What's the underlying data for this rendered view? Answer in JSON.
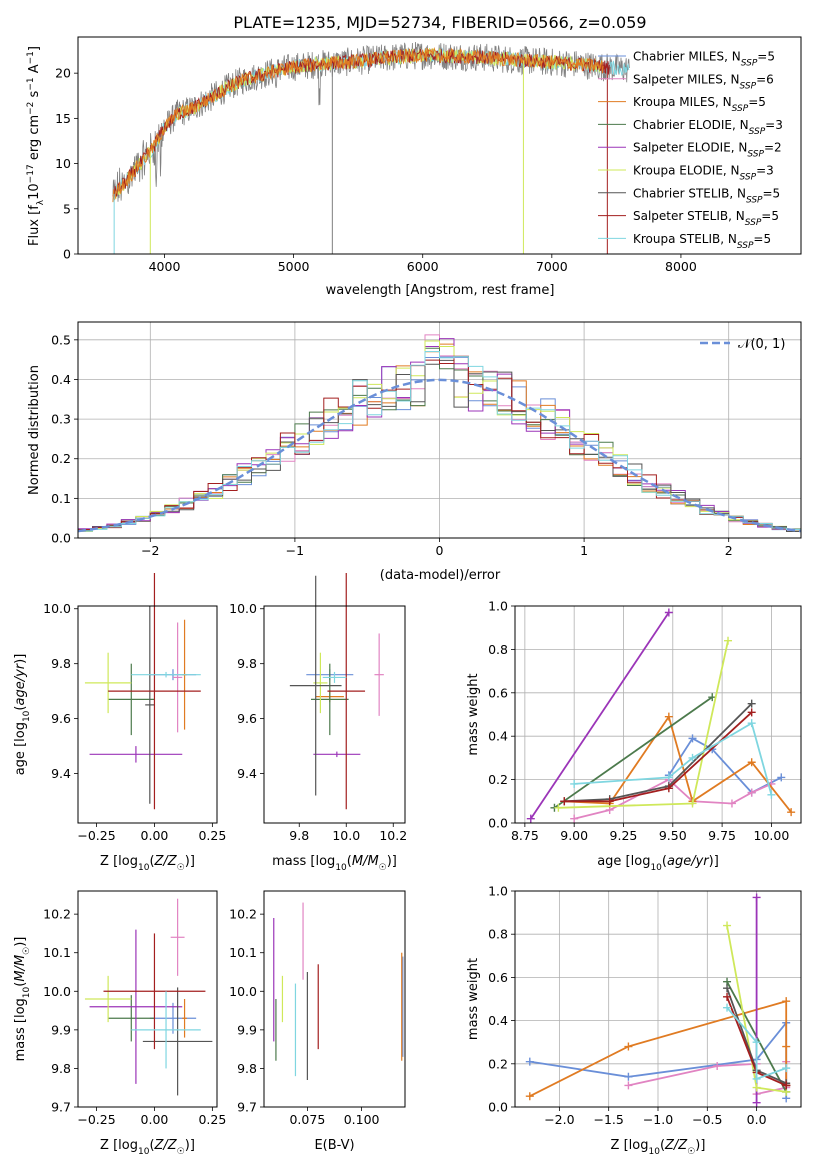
{
  "figure": {
    "title": "PLATE=1235, MJD=52734, FIBERID=0566, z=0.059"
  },
  "colors": {
    "chabrier_miles": "#6a8fd8",
    "salpeter_miles": "#e184c2",
    "kroupa_miles": "#e07b22",
    "chabrier_elodie": "#4c7a4c",
    "salpeter_elodie": "#9b35b8",
    "kroupa_elodie": "#cfe85a",
    "chabrier_stelib": "#555555",
    "salpeter_stelib": "#a31f1f",
    "kroupa_stelib": "#7fd6e0",
    "normal": "#6a8fd8",
    "data": "#808080"
  },
  "chart_data": [
    {
      "id": "spectrum",
      "type": "line",
      "xlabel": "wavelength [Angstrom, rest frame]",
      "ylabel": "Flux [f_λ10^-17 erg cm^-2 s^-1 A^-1]",
      "xlim": [
        3330,
        8930
      ],
      "ylim": [
        0,
        24
      ],
      "xticks": [
        4000,
        5000,
        6000,
        7000,
        8000
      ],
      "yticks": [
        0,
        5,
        10,
        15,
        20
      ],
      "grid": false,
      "legend_position": "right",
      "continuum": {
        "x": [
          3600,
          3700,
          3800,
          3900,
          4000,
          4100,
          4200,
          4300,
          4400,
          4500,
          4600,
          4700,
          4800,
          4900,
          5000,
          5200,
          5400,
          5600,
          5800,
          6000,
          6200,
          6400,
          6600,
          6800,
          7000,
          7200,
          7400,
          7600,
          7800,
          8000,
          8200,
          8400
        ],
        "y": [
          6.5,
          8.0,
          9.8,
          11.5,
          14.0,
          15.5,
          16.0,
          16.8,
          17.6,
          18.5,
          19.2,
          19.6,
          20.0,
          20.4,
          20.7,
          21.0,
          21.2,
          21.5,
          21.8,
          22.0,
          21.9,
          21.8,
          21.6,
          21.4,
          21.2,
          21.0,
          20.7,
          20.4,
          20.1,
          19.7,
          19.3,
          18.9
        ]
      },
      "legend": [
        {
          "label": "Chabrier MILES",
          "nssp": "5",
          "color_key": "chabrier_miles"
        },
        {
          "label": "Salpeter MILES",
          "nssp": "6",
          "color_key": "salpeter_miles"
        },
        {
          "label": "Kroupa MILES",
          "nssp": "5",
          "color_key": "kroupa_miles"
        },
        {
          "label": "Chabrier ELODIE",
          "nssp": "3",
          "color_key": "chabrier_elodie"
        },
        {
          "label": "Salpeter ELODIE",
          "nssp": "2",
          "color_key": "salpeter_elodie"
        },
        {
          "label": "Kroupa ELODIE",
          "nssp": "3",
          "color_key": "kroupa_elodie"
        },
        {
          "label": "Chabrier STELIB",
          "nssp": "5",
          "color_key": "chabrier_stelib"
        },
        {
          "label": "Salpeter STELIB",
          "nssp": "5",
          "color_key": "salpeter_stelib"
        },
        {
          "label": "Kroupa STELIB",
          "nssp": "5",
          "color_key": "kroupa_stelib"
        }
      ]
    },
    {
      "id": "residuals",
      "type": "histogram",
      "xlabel": "(data-model)/error",
      "ylabel": "Normed distribution",
      "xlim": [
        -2.5,
        2.5
      ],
      "ylim": [
        0,
        0.545
      ],
      "xticks": [
        -2,
        -1,
        0,
        1,
        2
      ],
      "yticks": [
        0.0,
        0.1,
        0.2,
        0.3,
        0.4,
        0.5
      ],
      "grid": true,
      "legend": [
        {
          "label": "𝒩(0, 1)",
          "color_key": "normal",
          "position": "top-right"
        }
      ],
      "bin_width": 0.1
    },
    {
      "id": "age_vs_Z",
      "type": "errorbar",
      "xlabel": "Z [log10(Z/Z☉)]",
      "ylabel": "age  [log10(age/yr)]",
      "xlim": [
        -0.33,
        0.27
      ],
      "ylim": [
        9.22,
        10.01
      ],
      "xticks": [
        -0.25,
        0.0,
        0.25
      ],
      "yticks": [
        9.4,
        9.6,
        9.8,
        10.0
      ],
      "grid": false,
      "points": [
        {
          "color_key": "chabrier_miles",
          "x": 0.08,
          "xerr": 0.1,
          "y": 9.76,
          "yerr": 0.02
        },
        {
          "color_key": "salpeter_miles",
          "x": 0.1,
          "xerr": 0.02,
          "y": 9.75,
          "yerr": 0.2
        },
        {
          "color_key": "kroupa_miles",
          "x": 0.13,
          "xerr": 0.01,
          "y": 9.76,
          "yerr": 0.2
        },
        {
          "color_key": "chabrier_elodie",
          "x": -0.1,
          "xerr": 0.1,
          "y": 9.67,
          "yerr": 0.13
        },
        {
          "color_key": "salpeter_elodie",
          "x": -0.08,
          "xerr": 0.2,
          "y": 9.47,
          "yerr": 0.03
        },
        {
          "color_key": "kroupa_elodie",
          "x": -0.2,
          "xerr": 0.1,
          "y": 9.73,
          "yerr": 0.11
        },
        {
          "color_key": "chabrier_stelib",
          "x": -0.02,
          "xerr": 0.02,
          "y": 9.65,
          "yerr": 0.36
        },
        {
          "color_key": "salpeter_stelib",
          "x": 0.0,
          "xerr": 0.2,
          "y": 9.7,
          "yerr": 0.43
        },
        {
          "color_key": "kroupa_stelib",
          "x": 0.05,
          "xerr": 0.15,
          "y": 9.76,
          "yerr": 0.01
        }
      ]
    },
    {
      "id": "age_vs_mass",
      "type": "errorbar",
      "xlabel": "mass [log10(M/M☉)]",
      "ylabel": "",
      "xlim": [
        9.65,
        10.25
      ],
      "ylim": [
        9.22,
        10.01
      ],
      "xticks": [
        9.8,
        10.0,
        10.2
      ],
      "yticks": [
        9.4,
        9.6,
        9.8,
        10.0
      ],
      "grid": false,
      "points": [
        {
          "color_key": "chabrier_miles",
          "x": 9.93,
          "xerr": 0.1,
          "y": 9.76,
          "yerr": 0.02
        },
        {
          "color_key": "salpeter_miles",
          "x": 10.14,
          "xerr": 0.02,
          "y": 9.76,
          "yerr": 0.15
        },
        {
          "color_key": "kroupa_miles",
          "x": 9.93,
          "xerr": 0.06,
          "y": 9.68,
          "yerr": 0.02
        },
        {
          "color_key": "chabrier_elodie",
          "x": 9.93,
          "xerr": 0.08,
          "y": 9.67,
          "yerr": 0.13
        },
        {
          "color_key": "salpeter_elodie",
          "x": 9.96,
          "xerr": 0.1,
          "y": 9.47,
          "yerr": 0.01
        },
        {
          "color_key": "kroupa_elodie",
          "x": 9.89,
          "xerr": 0.03,
          "y": 9.73,
          "yerr": 0.11
        },
        {
          "color_key": "chabrier_stelib",
          "x": 9.87,
          "xerr": 0.11,
          "y": 9.72,
          "yerr": 0.4
        },
        {
          "color_key": "salpeter_stelib",
          "x": 10.0,
          "xerr": 0.08,
          "y": 9.7,
          "yerr": 0.43
        },
        {
          "color_key": "kroupa_stelib",
          "x": 9.95,
          "xerr": 0.05,
          "y": 9.75,
          "yerr": 0.02
        }
      ]
    },
    {
      "id": "mass_weight_vs_age",
      "type": "line",
      "xlabel": "age  [log10(age/yr)]",
      "ylabel": "mass weight",
      "xlim": [
        8.7,
        10.15
      ],
      "ylim": [
        0,
        1.0
      ],
      "xticks": [
        8.75,
        9.0,
        9.25,
        9.5,
        9.75,
        10.0
      ],
      "yticks": [
        0.0,
        0.2,
        0.4,
        0.6,
        0.8,
        1.0
      ],
      "grid": true,
      "series": [
        {
          "color_key": "chabrier_miles",
          "x": [
            9.48,
            9.6,
            9.7,
            9.9,
            10.05
          ],
          "y": [
            0.22,
            0.39,
            0.34,
            0.14,
            0.21
          ]
        },
        {
          "color_key": "salpeter_miles",
          "x": [
            9.0,
            9.18,
            9.48,
            9.6,
            9.8,
            9.9,
            10.0
          ],
          "y": [
            0.02,
            0.06,
            0.2,
            0.1,
            0.09,
            0.14,
            0.18
          ]
        },
        {
          "color_key": "kroupa_miles",
          "x": [
            8.95,
            9.18,
            9.48,
            9.6,
            9.9,
            10.1
          ],
          "y": [
            0.1,
            0.09,
            0.49,
            0.1,
            0.28,
            0.05
          ]
        },
        {
          "color_key": "chabrier_elodie",
          "x": [
            8.9,
            9.7
          ],
          "y": [
            0.07,
            0.58
          ]
        },
        {
          "color_key": "salpeter_elodie",
          "x": [
            8.78,
            9.48
          ],
          "y": [
            0.02,
            0.97
          ]
        },
        {
          "color_key": "kroupa_elodie",
          "x": [
            8.92,
            9.6,
            9.78
          ],
          "y": [
            0.07,
            0.09,
            0.84
          ]
        },
        {
          "color_key": "chabrier_stelib",
          "x": [
            8.95,
            9.18,
            9.48,
            9.9
          ],
          "y": [
            0.1,
            0.11,
            0.17,
            0.55
          ]
        },
        {
          "color_key": "salpeter_stelib",
          "x": [
            8.95,
            9.18,
            9.48,
            9.9
          ],
          "y": [
            0.1,
            0.1,
            0.16,
            0.51
          ]
        },
        {
          "color_key": "kroupa_stelib",
          "x": [
            9.0,
            9.48,
            9.6,
            9.9,
            10.0
          ],
          "y": [
            0.18,
            0.21,
            0.3,
            0.46,
            0.13
          ]
        }
      ]
    },
    {
      "id": "mass_vs_Z",
      "type": "errorbar",
      "xlabel": "Z [log10(Z/Z☉)]",
      "ylabel": "mass [log10(M/M☉)]",
      "xlim": [
        -0.33,
        0.27
      ],
      "ylim": [
        9.7,
        10.26
      ],
      "xticks": [
        -0.25,
        0.0,
        0.25
      ],
      "yticks": [
        9.7,
        9.8,
        9.9,
        10.0,
        10.1,
        10.2
      ],
      "grid": false,
      "points": [
        {
          "color_key": "chabrier_miles",
          "x": 0.08,
          "xerr": 0.1,
          "y": 9.93,
          "yerr": 0.04
        },
        {
          "color_key": "salpeter_miles",
          "x": 0.1,
          "xerr": 0.03,
          "y": 10.14,
          "yerr": 0.1
        },
        {
          "color_key": "kroupa_miles",
          "x": 0.13,
          "xerr": 0.01,
          "y": 9.93,
          "yerr": 0.05
        },
        {
          "color_key": "chabrier_elodie",
          "x": -0.1,
          "xerr": 0.1,
          "y": 9.93,
          "yerr": 0.06
        },
        {
          "color_key": "salpeter_elodie",
          "x": -0.08,
          "xerr": 0.2,
          "y": 9.96,
          "yerr": 0.2
        },
        {
          "color_key": "kroupa_elodie",
          "x": -0.2,
          "xerr": 0.1,
          "y": 9.98,
          "yerr": 0.06
        },
        {
          "color_key": "chabrier_stelib",
          "x": 0.1,
          "xerr": 0.15,
          "y": 9.87,
          "yerr": 0.14
        },
        {
          "color_key": "salpeter_stelib",
          "x": 0.0,
          "xerr": 0.22,
          "y": 10.0,
          "yerr": 0.15
        },
        {
          "color_key": "kroupa_stelib",
          "x": 0.05,
          "xerr": 0.15,
          "y": 9.9,
          "yerr": 0.1
        }
      ]
    },
    {
      "id": "mass_vs_ebv",
      "type": "errorbar",
      "xlabel": "E(B-V)",
      "ylabel": "",
      "xlim": [
        0.055,
        0.12
      ],
      "ylim": [
        9.7,
        10.26
      ],
      "xticks": [
        0.075,
        0.1
      ],
      "yticks": [
        9.7,
        9.8,
        9.9,
        10.0,
        10.1,
        10.2
      ],
      "grid": false,
      "points": [
        {
          "color_key": "chabrier_miles",
          "x": 0.119,
          "xerr": 0,
          "y": 9.96,
          "yerr": 0.13
        },
        {
          "color_key": "salpeter_miles",
          "x": 0.073,
          "xerr": 0,
          "y": 10.13,
          "yerr": 0.1
        },
        {
          "color_key": "kroupa_miles",
          "x": 0.1185,
          "xerr": 0,
          "y": 9.96,
          "yerr": 0.14
        },
        {
          "color_key": "chabrier_elodie",
          "x": 0.0605,
          "xerr": 0,
          "y": 9.9,
          "yerr": 0.08
        },
        {
          "color_key": "salpeter_elodie",
          "x": 0.0595,
          "xerr": 0,
          "y": 10.03,
          "yerr": 0.16
        },
        {
          "color_key": "kroupa_elodie",
          "x": 0.0635,
          "xerr": 0,
          "y": 9.98,
          "yerr": 0.06
        },
        {
          "color_key": "chabrier_stelib",
          "x": 0.075,
          "xerr": 0,
          "y": 9.91,
          "yerr": 0.14
        },
        {
          "color_key": "salpeter_stelib",
          "x": 0.08,
          "xerr": 0,
          "y": 9.96,
          "yerr": 0.11
        },
        {
          "color_key": "kroupa_stelib",
          "x": 0.0695,
          "xerr": 0,
          "y": 9.9,
          "yerr": 0.12
        }
      ]
    },
    {
      "id": "mass_weight_vs_Z",
      "type": "line",
      "xlabel": "Z [log10(Z/Z☉)]",
      "ylabel": "mass weight",
      "xlim": [
        -2.45,
        0.45
      ],
      "ylim": [
        0,
        1.0
      ],
      "xticks": [
        -2.0,
        -1.5,
        -1.0,
        -0.5,
        0.0
      ],
      "yticks": [
        0.0,
        0.2,
        0.4,
        0.6,
        0.8,
        1.0
      ],
      "grid": true,
      "series": [
        {
          "color_key": "chabrier_miles",
          "x": [
            -2.3,
            -1.3,
            0.0,
            0.3,
            0.3
          ],
          "y": [
            0.21,
            0.14,
            0.22,
            0.39,
            0.04
          ]
        },
        {
          "color_key": "salpeter_miles",
          "x": [
            -1.3,
            -0.4,
            0.0,
            0.0,
            0.3,
            0.3
          ],
          "y": [
            0.1,
            0.19,
            0.2,
            0.06,
            0.09,
            0.21
          ]
        },
        {
          "color_key": "kroupa_miles",
          "x": [
            -2.3,
            -1.3,
            0.3,
            0.3,
            0.3,
            0.3
          ],
          "y": [
            0.05,
            0.28,
            0.49,
            0.28,
            0.1,
            0.1
          ]
        },
        {
          "color_key": "chabrier_elodie",
          "x": [
            -0.3,
            0.3
          ],
          "y": [
            0.58,
            0.07
          ]
        },
        {
          "color_key": "salpeter_elodie",
          "x": [
            0.0,
            0.0
          ],
          "y": [
            0.97,
            0.02
          ]
        },
        {
          "color_key": "kroupa_elodie",
          "x": [
            -0.3,
            0.0,
            0.3
          ],
          "y": [
            0.84,
            0.09,
            0.07
          ]
        },
        {
          "color_key": "chabrier_stelib",
          "x": [
            -0.3,
            0.0,
            0.3,
            0.3
          ],
          "y": [
            0.55,
            0.17,
            0.11,
            0.1
          ]
        },
        {
          "color_key": "salpeter_stelib",
          "x": [
            -0.3,
            0.0,
            0.3,
            0.3
          ],
          "y": [
            0.51,
            0.16,
            0.1,
            0.1
          ]
        },
        {
          "color_key": "kroupa_stelib",
          "x": [
            -0.3,
            0.0,
            0.0,
            0.3
          ],
          "y": [
            0.46,
            0.3,
            0.13,
            0.18
          ]
        }
      ]
    }
  ]
}
